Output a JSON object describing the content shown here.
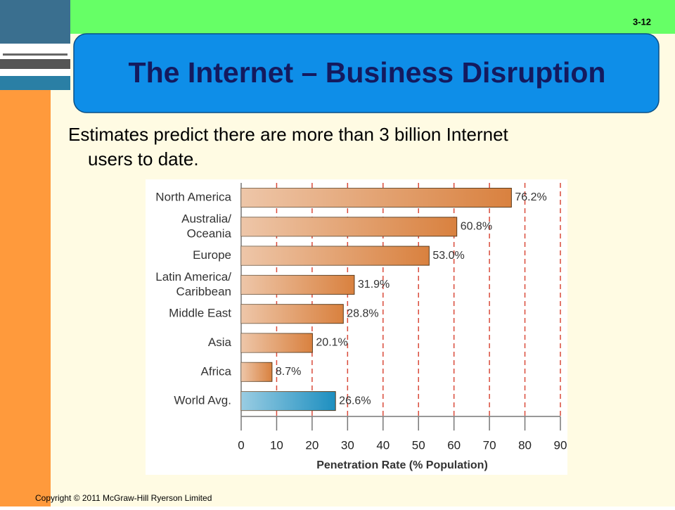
{
  "slide_number": "3-12",
  "title": "The Internet – Business Disruption",
  "body": [
    "Estimates predict there are more than 3 billion Internet",
    "users to  date."
  ],
  "footer": "Copyright © 2011 McGraw-Hill Ryerson Limited",
  "chart_data": {
    "type": "barh",
    "categories": [
      [
        "North America"
      ],
      [
        "Australia/",
        "Oceania"
      ],
      [
        "Europe"
      ],
      [
        "Latin America/",
        "Caribbean"
      ],
      [
        "Middle East"
      ],
      [
        "Asia"
      ],
      [
        "Africa"
      ],
      [
        "World Avg."
      ]
    ],
    "values": [
      76.2,
      60.8,
      53.0,
      31.9,
      28.8,
      20.1,
      8.7,
      26.6
    ],
    "value_labels": [
      "76.2%",
      "60.8%",
      "53.0%",
      "31.9%",
      "28.8%",
      "20.1%",
      "8.7%",
      "26.6%"
    ],
    "colors": [
      "#d9813f",
      "#d9813f",
      "#d9813f",
      "#d9813f",
      "#d9813f",
      "#d9813f",
      "#d9813f",
      "#1d8fc0"
    ],
    "xlabel": "Penetration Rate (% Population)",
    "xlim": [
      0,
      90
    ],
    "xticks": [
      0,
      10,
      20,
      30,
      40,
      50,
      60,
      70,
      80,
      90
    ],
    "grid": true
  }
}
